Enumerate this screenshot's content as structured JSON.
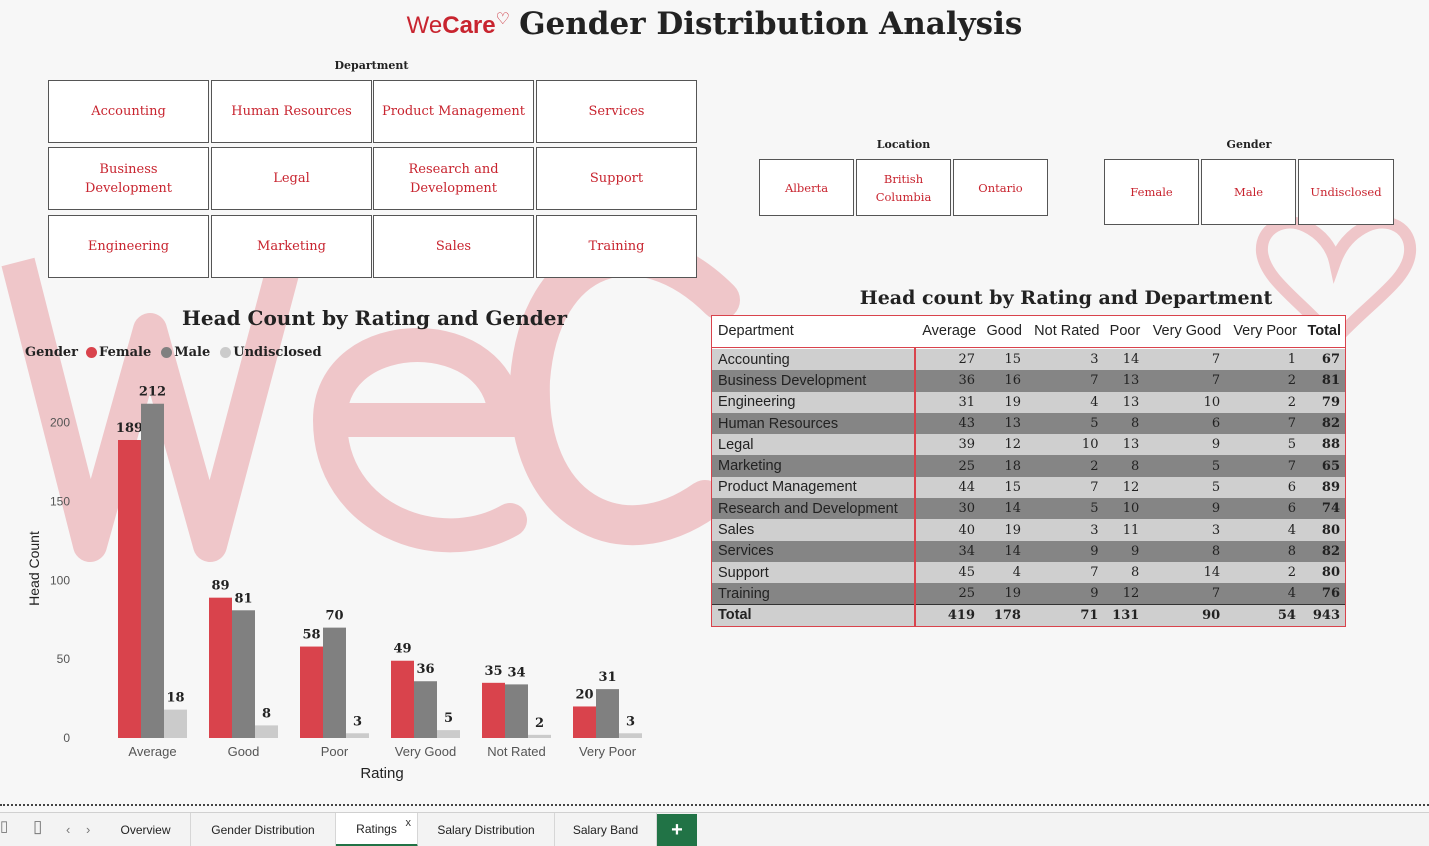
{
  "header": {
    "brand_we": "We",
    "brand_care": "Care",
    "title": "Gender Distribution Analysis"
  },
  "slicers": {
    "department": {
      "title": "Department",
      "items": [
        "Accounting",
        "Human Resources",
        "Product Management",
        "Services",
        "Business Development",
        "Legal",
        "Research and Development",
        "Support",
        "Engineering",
        "Marketing",
        "Sales",
        "Training"
      ]
    },
    "location": {
      "title": "Location",
      "items": [
        "Alberta",
        "British Columbia",
        "Ontario"
      ]
    },
    "gender": {
      "title": "Gender",
      "items": [
        "Female",
        "Male",
        "Undisclosed"
      ]
    }
  },
  "bar_chart": {
    "title": "Head Count by Rating and Gender",
    "legend_title": "Gender"
  },
  "chart_data": {
    "type": "bar",
    "title": "Head Count by Rating and Gender",
    "xlabel": "Rating",
    "ylabel": "Head Count",
    "ylim": [
      0,
      215
    ],
    "yticks": [
      0,
      50,
      100,
      150,
      200
    ],
    "categories": [
      "Average",
      "Good",
      "Poor",
      "Very Good",
      "Not Rated",
      "Very Poor"
    ],
    "series": [
      {
        "name": "Female",
        "color": "#d9434c",
        "values": [
          189,
          89,
          58,
          49,
          35,
          20
        ]
      },
      {
        "name": "Male",
        "color": "#808080",
        "values": [
          212,
          81,
          70,
          36,
          34,
          31
        ]
      },
      {
        "name": "Undisclosed",
        "color": "#cbcbcb",
        "values": [
          18,
          8,
          3,
          5,
          2,
          3
        ]
      }
    ],
    "legend_position": "top-left",
    "grid": false,
    "data_labels": true
  },
  "table": {
    "title": "Head count by Rating and Department",
    "columns": [
      "Department",
      "Average",
      "Good",
      "Not Rated",
      "Poor",
      "Very Good",
      "Very Poor",
      "Total"
    ],
    "rows": [
      [
        "Accounting",
        "27",
        "15",
        "3",
        "14",
        "7",
        "1",
        "67"
      ],
      [
        "Business Development",
        "36",
        "16",
        "7",
        "13",
        "7",
        "2",
        "81"
      ],
      [
        "Engineering",
        "31",
        "19",
        "4",
        "13",
        "10",
        "2",
        "79"
      ],
      [
        "Human Resources",
        "43",
        "13",
        "5",
        "8",
        "6",
        "7",
        "82"
      ],
      [
        "Legal",
        "39",
        "12",
        "10",
        "13",
        "9",
        "5",
        "88"
      ],
      [
        "Marketing",
        "25",
        "18",
        "2",
        "8",
        "5",
        "7",
        "65"
      ],
      [
        "Product Management",
        "44",
        "15",
        "7",
        "12",
        "5",
        "6",
        "89"
      ],
      [
        "Research and Development",
        "30",
        "14",
        "5",
        "10",
        "9",
        "6",
        "74"
      ],
      [
        "Sales",
        "40",
        "19",
        "3",
        "11",
        "3",
        "4",
        "80"
      ],
      [
        "Services",
        "34",
        "14",
        "9",
        "9",
        "8",
        "8",
        "82"
      ],
      [
        "Support",
        "45",
        "4",
        "7",
        "8",
        "14",
        "2",
        "80"
      ],
      [
        "Training",
        "25",
        "19",
        "9",
        "12",
        "7",
        "4",
        "76"
      ]
    ],
    "total": [
      "Total",
      "419",
      "178",
      "71",
      "131",
      "90",
      "54",
      "943"
    ]
  },
  "sheet_tabs": {
    "tabs": [
      "Overview",
      "Gender Distribution",
      "Ratings",
      "Salary Distribution",
      "Salary Band"
    ],
    "active": "Ratings",
    "close_glyph": "x",
    "add_glyph": "+"
  },
  "colors": {
    "accent": "#c8242f",
    "female": "#d9434c",
    "male": "#808080",
    "undisclosed": "#cbcbcb",
    "excel_green": "#217346"
  }
}
